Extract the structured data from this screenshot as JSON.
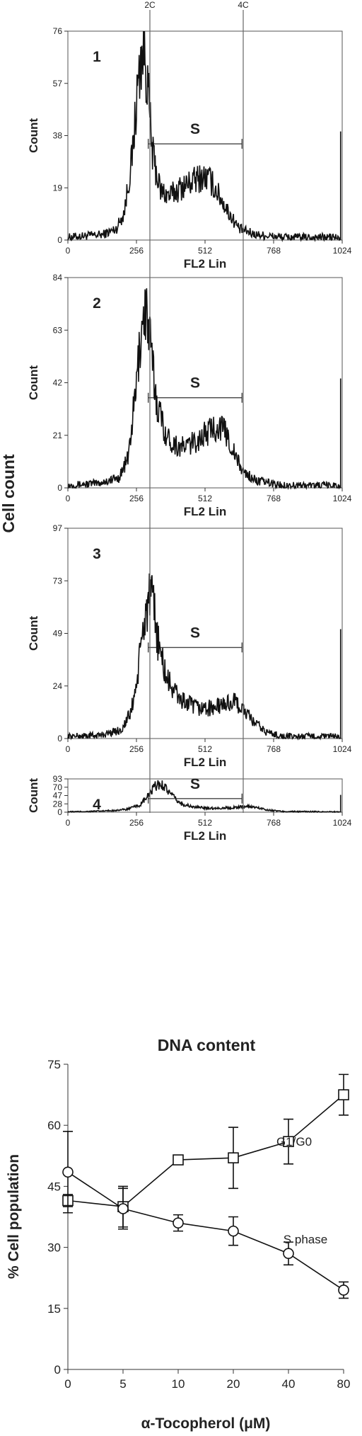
{
  "chart_data": [
    {
      "type": "line",
      "panel": "1",
      "xlabel": "FL2 Lin",
      "ylabel": "Count",
      "x_ticks": [
        "0",
        "256",
        "512",
        "768",
        "1024"
      ],
      "y_ticks": [
        "0",
        "19",
        "38",
        "57",
        "76"
      ],
      "ylim": [
        0,
        76
      ],
      "xlim": [
        0,
        1024
      ],
      "s_label": "S",
      "s_range": [
        300,
        650
      ],
      "s_y": 35,
      "profile": [
        [
          0,
          1
        ],
        [
          60,
          1.5
        ],
        [
          130,
          2
        ],
        [
          180,
          4
        ],
        [
          210,
          10
        ],
        [
          240,
          30
        ],
        [
          260,
          55
        ],
        [
          275,
          68
        ],
        [
          285,
          70
        ],
        [
          295,
          60
        ],
        [
          315,
          32
        ],
        [
          345,
          18
        ],
        [
          380,
          16
        ],
        [
          420,
          19
        ],
        [
          460,
          21
        ],
        [
          500,
          23
        ],
        [
          530,
          22
        ],
        [
          560,
          17
        ],
        [
          600,
          10
        ],
        [
          640,
          4
        ],
        [
          700,
          2
        ],
        [
          800,
          1
        ],
        [
          1000,
          1
        ],
        [
          1020,
          0
        ]
      ]
    },
    {
      "type": "line",
      "panel": "2",
      "xlabel": "FL2 Lin",
      "ylabel": "Count",
      "x_ticks": [
        "0",
        "256",
        "512",
        "768",
        "1024"
      ],
      "y_ticks": [
        "0",
        "21",
        "42",
        "63",
        "84"
      ],
      "ylim": [
        0,
        84
      ],
      "xlim": [
        0,
        1024
      ],
      "s_label": "S",
      "s_range": [
        300,
        650
      ],
      "s_y": 36,
      "profile": [
        [
          0,
          1
        ],
        [
          120,
          2
        ],
        [
          190,
          4
        ],
        [
          225,
          12
        ],
        [
          255,
          40
        ],
        [
          275,
          65
        ],
        [
          290,
          72
        ],
        [
          305,
          60
        ],
        [
          330,
          35
        ],
        [
          370,
          20
        ],
        [
          420,
          16
        ],
        [
          470,
          18
        ],
        [
          520,
          22
        ],
        [
          560,
          25
        ],
        [
          590,
          22
        ],
        [
          620,
          14
        ],
        [
          650,
          7
        ],
        [
          700,
          3
        ],
        [
          800,
          1
        ],
        [
          1000,
          1
        ],
        [
          1020,
          0
        ]
      ]
    },
    {
      "type": "line",
      "panel": "3",
      "xlabel": "FL2 Lin",
      "ylabel": "Count",
      "x_ticks": [
        "0",
        "256",
        "512",
        "768",
        "1024"
      ],
      "y_ticks": [
        "0",
        "24",
        "49",
        "73",
        "97"
      ],
      "ylim": [
        0,
        97
      ],
      "xlim": [
        0,
        1024
      ],
      "s_label": "S",
      "s_range": [
        300,
        650
      ],
      "s_y": 42,
      "profile": [
        [
          0,
          1
        ],
        [
          120,
          1.5
        ],
        [
          200,
          4
        ],
        [
          235,
          12
        ],
        [
          260,
          28
        ],
        [
          280,
          50
        ],
        [
          300,
          64
        ],
        [
          318,
          62
        ],
        [
          340,
          42
        ],
        [
          370,
          27
        ],
        [
          420,
          18
        ],
        [
          480,
          14
        ],
        [
          540,
          14
        ],
        [
          590,
          16
        ],
        [
          620,
          17
        ],
        [
          650,
          14
        ],
        [
          690,
          8
        ],
        [
          740,
          3
        ],
        [
          800,
          1
        ],
        [
          1000,
          1
        ],
        [
          1020,
          0
        ]
      ]
    },
    {
      "type": "line",
      "panel": "4",
      "xlabel": "FL2 Lin",
      "ylabel": "Count",
      "x_ticks": [
        "0",
        "256",
        "512",
        "768",
        "1024"
      ],
      "y_ticks": [
        "0",
        "28",
        "47",
        "70",
        "93"
      ],
      "ylim": [
        0,
        93
      ],
      "xlim": [
        0,
        1024
      ],
      "s_label": "S",
      "s_range": [
        300,
        650
      ],
      "s_y": 38,
      "profile": [
        [
          0,
          1
        ],
        [
          80,
          2
        ],
        [
          160,
          4
        ],
        [
          220,
          8
        ],
        [
          270,
          20
        ],
        [
          305,
          50
        ],
        [
          325,
          72
        ],
        [
          342,
          78
        ],
        [
          360,
          74
        ],
        [
          385,
          48
        ],
        [
          420,
          24
        ],
        [
          470,
          14
        ],
        [
          540,
          11
        ],
        [
          600,
          12
        ],
        [
          650,
          15
        ],
        [
          680,
          16
        ],
        [
          710,
          12
        ],
        [
          750,
          6
        ],
        [
          800,
          2
        ],
        [
          1000,
          1
        ],
        [
          1020,
          0
        ]
      ]
    },
    {
      "type": "line",
      "xlabel": "α-Tocopherol (μM)",
      "ylabel": "% Cell population",
      "categories": [
        "0",
        "5",
        "10",
        "20",
        "40",
        "80"
      ],
      "y_ticks": [
        "0",
        "15",
        "30",
        "45",
        "60",
        "75"
      ],
      "ylim": [
        0,
        75
      ],
      "series": [
        {
          "name": "G1/G0",
          "marker": "square",
          "values": [
            41.5,
            40,
            51.5,
            52,
            56,
            67.5
          ],
          "errors": [
            1.5,
            5,
            0,
            7.5,
            5.5,
            5
          ]
        },
        {
          "name": "S phase",
          "marker": "circle",
          "values": [
            48.5,
            39.5,
            36,
            34,
            28.5,
            19.5
          ],
          "errors": [
            10,
            5,
            2,
            3.5,
            2.8,
            2
          ]
        }
      ]
    }
  ],
  "annotations": {
    "top_marker_2c": "2C",
    "top_marker_4c": "4C",
    "left_axis_label": "Cell count",
    "bottom_axis_label": "DNA content"
  }
}
